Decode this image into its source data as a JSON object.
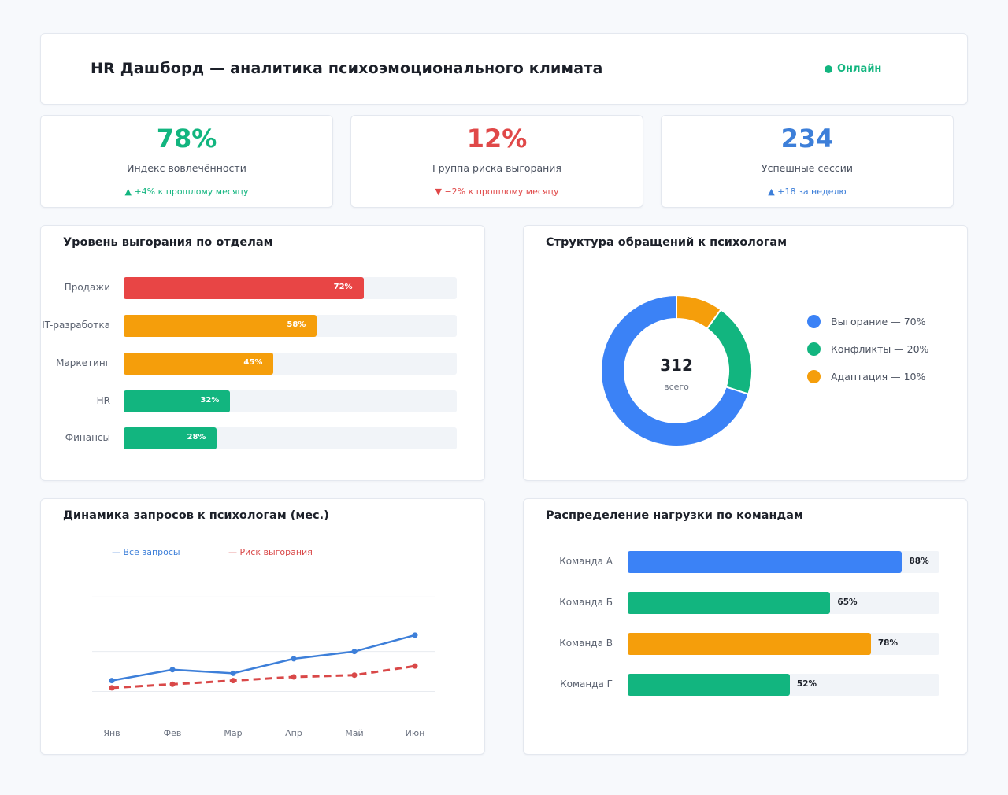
{
  "header": {
    "title": "HR Дашборд — аналитика психоэмоционального климата",
    "status": "Онлайн"
  },
  "kpis": [
    {
      "value": "78%",
      "label": "Индекс вовлечённости",
      "delta": "▲ +4% к прошлому месяцу",
      "color": "#12b57f",
      "delta_color": "#12b57f"
    },
    {
      "value": "12%",
      "label": "Группа риска выгорания",
      "delta": "▼ −2% к прошлому месяцу",
      "color": "#e04848",
      "delta_color": "#e04848"
    },
    {
      "value": "234",
      "label": "Успешные сессии",
      "delta": "▲ +18 за неделю",
      "color": "#3d7fd9",
      "delta_color": "#3d7fd9"
    }
  ],
  "burnout": {
    "title": "Уровень выгорания по отделам",
    "rows": [
      {
        "label": "Продажи",
        "value": 72,
        "text": "72%",
        "color": "#e84545"
      },
      {
        "label": "IT-разработка",
        "value": 58,
        "text": "58%",
        "color": "#f59e0b"
      },
      {
        "label": "Маркетинг",
        "value": 45,
        "text": "45%",
        "color": "#f59e0b"
      },
      {
        "label": "HR",
        "value": 32,
        "text": "32%",
        "color": "#12b57f"
      },
      {
        "label": "Финансы",
        "value": 28,
        "text": "28%",
        "color": "#12b57f"
      }
    ]
  },
  "requests": {
    "title": "Структура обращений к психологам",
    "total": "312",
    "total_label": "всего",
    "segments": [
      {
        "label": "Выгорание — 70%",
        "value": 70,
        "color": "#3b82f6"
      },
      {
        "label": "Конфликты — 20%",
        "value": 20,
        "color": "#12b57f"
      },
      {
        "label": "Адаптация — 10%",
        "value": 10,
        "color": "#f59e0b"
      }
    ]
  },
  "dynamics": {
    "title": "Динамика запросов к психологам (мес.)",
    "legend_all": "— Все запросы",
    "legend_risk": "— Риск выгорания",
    "chart_data": {
      "type": "line",
      "x": [
        "Янв",
        "Фев",
        "Мар",
        "Апр",
        "Май",
        "Июн"
      ],
      "series": [
        {
          "name": "Все запросы",
          "values": [
            14,
            20,
            18,
            26,
            30,
            39
          ],
          "color": "#3d7fd9",
          "dashed": false
        },
        {
          "name": "Риск выгорания",
          "values": [
            10,
            12,
            14,
            16,
            17,
            22
          ],
          "color": "#d94848",
          "dashed": true
        }
      ],
      "ylim": [
        0,
        90
      ],
      "grid": true
    }
  },
  "teams": {
    "title": "Распределение нагрузки по командам",
    "rows": [
      {
        "label": "Команда А",
        "value": 88,
        "text": "88%",
        "color": "#3b82f6"
      },
      {
        "label": "Команда Б",
        "value": 65,
        "text": "65%",
        "color": "#12b57f"
      },
      {
        "label": "Команда В",
        "value": 78,
        "text": "78%",
        "color": "#f59e0b"
      },
      {
        "label": "Команда Г",
        "value": 52,
        "text": "52%",
        "color": "#12b57f"
      }
    ]
  }
}
